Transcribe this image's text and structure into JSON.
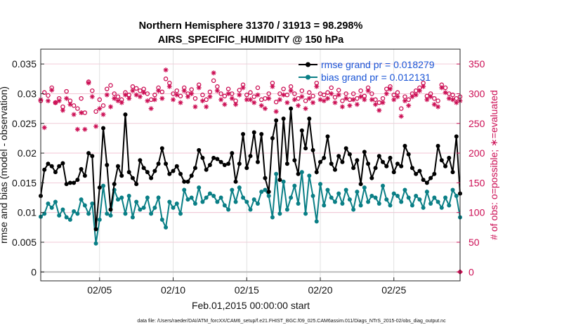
{
  "chart_data": {
    "type": "line",
    "title_line1": "Northern Hemisphere 31370 / 31913 = 98.298%",
    "title_line2": "AIRS_SPECIFIC_HUMIDITY @ 150 hPa",
    "xlabel": "Feb.01,2015 00:00:00 start",
    "ylabel": "rmse and bias (model - observation)",
    "ylabel_right": "# of obs: o=possible; ∗=evaluated",
    "footnote": "data file: /Users/raeder/DAI/ATM_forcXX/CAM6_setup/f.e21.FHIST_BGC.f09_025.CAM6assim.011/Diags_NTrS_2015-02/obs_diag_output.nc",
    "x_range_days": [
      1,
      29.5
    ],
    "x_ticks": [
      {
        "day": 5,
        "label": "02/05"
      },
      {
        "day": 10,
        "label": "02/10"
      },
      {
        "day": 15,
        "label": "02/15"
      },
      {
        "day": 20,
        "label": "02/20"
      },
      {
        "day": 25,
        "label": "02/25"
      }
    ],
    "ylim": [
      -0.0015,
      0.0375
    ],
    "y_ticks": [
      {
        "value": 0,
        "label": "0"
      },
      {
        "value": 0.005,
        "label": "0.005"
      },
      {
        "value": 0.01,
        "label": "0.01"
      },
      {
        "value": 0.015,
        "label": "0.015"
      },
      {
        "value": 0.02,
        "label": "0.02"
      },
      {
        "value": 0.025,
        "label": "0.025"
      },
      {
        "value": 0.03,
        "label": "0.03"
      },
      {
        "value": 0.035,
        "label": "0.035"
      }
    ],
    "y2lim": [
      -15,
      375
    ],
    "y2_ticks": [
      {
        "value": 0,
        "label": "0"
      },
      {
        "value": 50,
        "label": "50"
      },
      {
        "value": 100,
        "label": "100"
      },
      {
        "value": 150,
        "label": "150"
      },
      {
        "value": 200,
        "label": "200"
      },
      {
        "value": 250,
        "label": "250"
      },
      {
        "value": 300,
        "label": "300"
      },
      {
        "value": 350,
        "label": "350"
      }
    ],
    "x_start_day": 1.0,
    "x_step_days": 0.25,
    "series": [
      {
        "name": "rmse",
        "legend": "rmse grand pr = 0.018279",
        "color": "#000000",
        "values": [
          0.0128,
          0.0172,
          0.0182,
          0.0178,
          0.0168,
          0.0178,
          0.0183,
          0.0148,
          0.015,
          0.015,
          0.0155,
          0.0173,
          0.0162,
          0.02,
          0.0195,
          0.0072,
          0.0142,
          0.0242,
          0.018,
          0.0105,
          0.0148,
          0.0178,
          0.0162,
          0.0265,
          0.0168,
          0.0158,
          0.0148,
          0.0188,
          0.0175,
          0.0168,
          0.0158,
          0.017,
          0.0182,
          0.0208,
          0.0182,
          0.0165,
          0.017,
          0.0178,
          0.0165,
          0.0152,
          0.0152,
          0.0162,
          0.0175,
          0.0205,
          0.0192,
          0.0172,
          0.018,
          0.0192,
          0.019,
          0.0185,
          0.018,
          0.0182,
          0.02,
          0.0152,
          0.0182,
          0.0232,
          0.0175,
          0.0195,
          0.0235,
          0.0185,
          0.0232,
          0.0158,
          0.0135,
          0.0225,
          0.0255,
          0.0155,
          0.0258,
          0.0182,
          0.0275,
          0.0188,
          0.0165,
          0.0238,
          0.0208,
          0.0258,
          0.0205,
          0.0168,
          0.0185,
          0.0192,
          0.0228,
          0.0182,
          0.0172,
          0.0195,
          0.0185,
          0.0208,
          0.0198,
          0.0175,
          0.0188,
          0.0148,
          0.0202,
          0.0182,
          0.0158,
          0.0175,
          0.0195,
          0.0185,
          0.0178,
          0.0192,
          0.0168,
          0.0182,
          0.0178,
          0.0212,
          0.0198,
          0.0175,
          0.0165,
          0.017,
          0.0155,
          0.015,
          0.0158,
          0.0165,
          0.0212,
          0.0188,
          0.0178,
          0.0192,
          0.0168,
          0.0228,
          0.0132
        ]
      },
      {
        "name": "bias",
        "legend": "bias grand pr = 0.012131",
        "color": "#0a7f86",
        "values": [
          0.0093,
          0.0098,
          0.0115,
          0.0108,
          0.0118,
          0.0095,
          0.0105,
          0.0092,
          0.0088,
          0.0102,
          0.0098,
          0.0122,
          0.0112,
          0.0098,
          0.0115,
          0.0048,
          0.0088,
          0.0145,
          0.0098,
          0.0095,
          0.0138,
          0.0122,
          0.0125,
          0.0098,
          0.0128,
          0.0092,
          0.0118,
          0.0105,
          0.0108,
          0.0125,
          0.0098,
          0.0108,
          0.0125,
          0.0088,
          0.0075,
          0.0118,
          0.0108,
          0.0115,
          0.0098,
          0.0138,
          0.0122,
          0.0125,
          0.0115,
          0.0142,
          0.0118,
          0.0125,
          0.0132,
          0.0128,
          0.0118,
          0.0125,
          0.0112,
          0.0105,
          0.0138,
          0.0118,
          0.0142,
          0.0125,
          0.0118,
          0.0105,
          0.0122,
          0.0115,
          0.0135,
          0.0138,
          0.0128,
          0.0092,
          0.0165,
          0.0098,
          0.0152,
          0.0105,
          0.0125,
          0.0145,
          0.0115,
          0.0168,
          0.0098,
          0.0162,
          0.0128,
          0.0085,
          0.0148,
          0.0112,
          0.0138,
          0.0125,
          0.0118,
          0.0132,
          0.0115,
          0.0138,
          0.0122,
          0.0105,
          0.0135,
          0.0112,
          0.0142,
          0.0118,
          0.0128,
          0.0125,
          0.0115,
          0.0145,
          0.0122,
          0.0112,
          0.0132,
          0.0128,
          0.0118,
          0.0138,
          0.0125,
          0.0112,
          0.0128,
          0.0122,
          0.0108,
          0.0135,
          0.0115,
          0.0125,
          0.0118,
          0.0108,
          0.0125,
          0.0112,
          0.0138,
          0.0128,
          0.0092
        ]
      }
    ],
    "obs_possible": [
      288,
      302,
      297,
      310,
      285,
      292,
      278,
      304,
      288,
      280,
      275,
      292,
      268,
      320,
      305,
      270,
      290,
      280,
      308,
      314,
      300,
      295,
      290,
      302,
      298,
      312,
      309,
      305,
      308,
      300,
      290,
      298,
      310,
      303,
      325,
      318,
      300,
      305,
      296,
      310,
      300,
      307,
      292,
      315,
      298,
      290,
      303,
      322,
      312,
      300,
      296,
      308,
      300,
      288,
      306,
      315,
      298,
      302,
      295,
      310,
      290,
      292,
      300,
      318,
      286,
      300,
      308,
      298,
      312,
      300,
      292,
      305,
      288,
      302,
      296,
      318,
      300,
      298,
      302,
      310,
      294,
      306,
      288,
      300,
      290,
      300,
      292,
      305,
      296,
      310,
      300,
      290,
      285,
      292,
      308,
      312,
      298,
      302,
      275,
      295,
      290,
      300,
      305,
      310,
      318,
      296,
      300,
      292,
      288,
      315,
      310,
      300,
      298,
      292,
      295
    ],
    "obs_evaluated": [
      290,
      243,
      288,
      306,
      285,
      288,
      272,
      292,
      282,
      265,
      240,
      268,
      240,
      318,
      295,
      245,
      275,
      265,
      298,
      278,
      292,
      288,
      285,
      298,
      292,
      305,
      298,
      295,
      302,
      288,
      275,
      290,
      305,
      292,
      340,
      312,
      290,
      298,
      285,
      305,
      295,
      300,
      278,
      310,
      288,
      278,
      295,
      335,
      305,
      290,
      282,
      300,
      292,
      282,
      298,
      310,
      290,
      290,
      285,
      298,
      280,
      275,
      292,
      312,
      270,
      290,
      298,
      285,
      305,
      290,
      280,
      295,
      275,
      292,
      285,
      312,
      290,
      288,
      292,
      300,
      285,
      298,
      278,
      292,
      280,
      290,
      282,
      295,
      290,
      305,
      290,
      282,
      272,
      285,
      300,
      308,
      290,
      295,
      262,
      288,
      280,
      295,
      298,
      305,
      312,
      290,
      295,
      282,
      278,
      310,
      302,
      292,
      290,
      285,
      288
    ]
  }
}
